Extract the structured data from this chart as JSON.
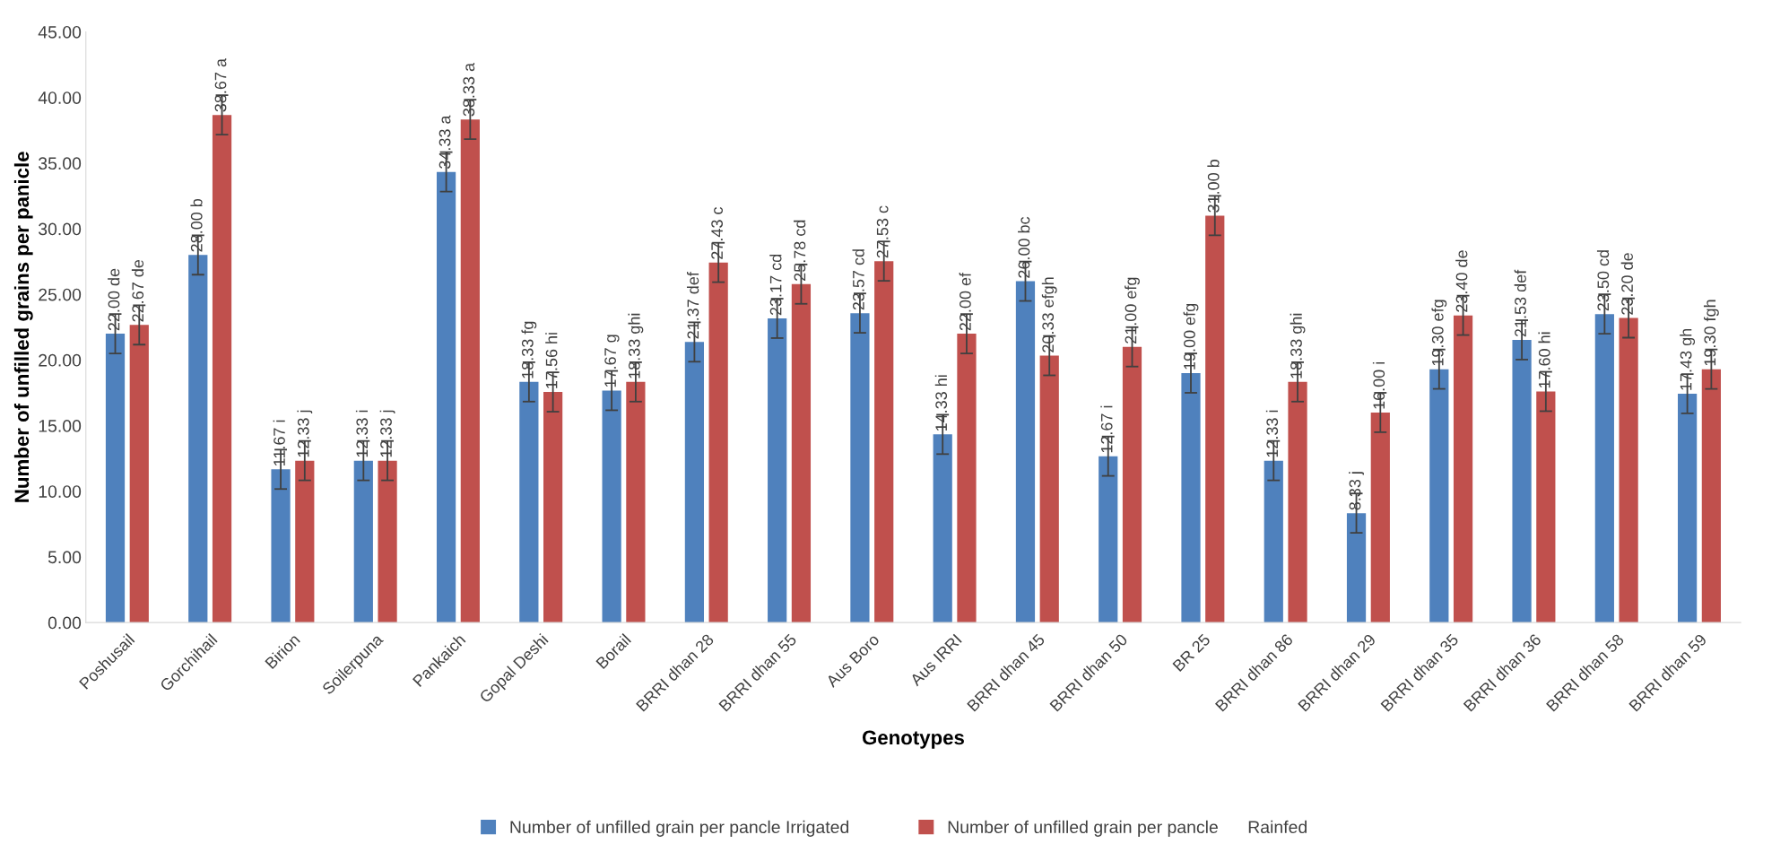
{
  "chart_data": {
    "type": "bar",
    "xlabel": "Genotypes",
    "ylabel": "Number of unfilled grains per panicle",
    "categories": [
      "Poshusail",
      "Gorchihail",
      "Birion",
      "Soilerpuna",
      "Pankaich",
      "Gopal Deshi",
      "Borail",
      "BRRI dhan 28",
      "BRRI dhan 55",
      "Aus Boro",
      "Aus IRRI",
      "BRRI dhan 45",
      "BRRI dhan 50",
      "BR 25",
      "BRRI dhan 86",
      "BRRI dhan 29",
      "BRRI dhan 35",
      "BRRI dhan 36",
      "BRRI dhan 58",
      "BRRI dhan 59"
    ],
    "series": [
      {
        "name": "Number of unfilled grain per pancle Irrigated",
        "color": "#4f81bd",
        "values": [
          22.0,
          28.0,
          11.67,
          12.33,
          34.33,
          18.33,
          17.67,
          21.37,
          23.17,
          23.57,
          14.33,
          26.0,
          12.67,
          19.0,
          12.33,
          8.33,
          19.3,
          21.53,
          23.5,
          17.43
        ],
        "errors": [
          1.5,
          1.5,
          1.5,
          1.5,
          1.5,
          1.5,
          1.5,
          1.5,
          1.5,
          1.5,
          1.5,
          1.5,
          1.5,
          1.5,
          1.5,
          1.5,
          1.5,
          1.5,
          1.5,
          1.5
        ],
        "value_labels": [
          "22.00 de",
          "28.00 b",
          "11.67 i",
          "12.33 i",
          "34.33 a",
          "18.33 fg",
          "17.67 g",
          "21.37 def",
          "23.17 cd",
          "23.57 cd",
          "14.33 hi",
          "26.00 bc",
          "12.67 i",
          "19.00 efg",
          "12.33 i",
          "8.33 j",
          "19.30 efg",
          "21.53 def",
          "23.50 cd",
          "17.43 gh"
        ]
      },
      {
        "name": "Number of unfilled grain per pancle      Rainfed",
        "color": "#c0504d",
        "values": [
          22.67,
          38.67,
          12.33,
          12.33,
          38.33,
          17.56,
          18.33,
          27.43,
          25.78,
          27.53,
          22.0,
          20.33,
          21.0,
          31.0,
          18.33,
          16.0,
          23.4,
          17.6,
          23.2,
          19.3
        ],
        "errors": [
          1.5,
          1.5,
          1.5,
          1.5,
          1.5,
          1.5,
          1.5,
          1.5,
          1.5,
          1.5,
          1.5,
          1.5,
          1.5,
          1.5,
          1.5,
          1.5,
          1.5,
          1.5,
          1.5,
          1.5
        ],
        "value_labels": [
          "22.67 de",
          "38.67 a",
          "12.33 j",
          "12.33 j",
          "38.33 a",
          "17.56 hi",
          "18.33 ghi",
          "27.43 c",
          "25.78 cd",
          "27.53 c",
          "22.00 ef",
          "20.33 efgh",
          "21.00 efg",
          "31.00 b",
          "18.33 ghi",
          "16.00 i",
          "23.40 de",
          "17.60 hi",
          "23.20 de",
          "19.30 fgh"
        ]
      }
    ],
    "ylim": [
      0,
      45
    ],
    "yticks": [
      {
        "value": 0,
        "label": "0.00"
      },
      {
        "value": 5,
        "label": "5.00"
      },
      {
        "value": 10,
        "label": "10.00"
      },
      {
        "value": 15,
        "label": "15.00"
      },
      {
        "value": 20,
        "label": "20.00"
      },
      {
        "value": 25,
        "label": "25.00"
      },
      {
        "value": 30,
        "label": "30.00"
      },
      {
        "value": 35,
        "label": "35.00"
      },
      {
        "value": 40,
        "label": "40.00"
      },
      {
        "value": 45,
        "label": "45.00"
      }
    ],
    "grid": false,
    "legend": "bottom"
  }
}
